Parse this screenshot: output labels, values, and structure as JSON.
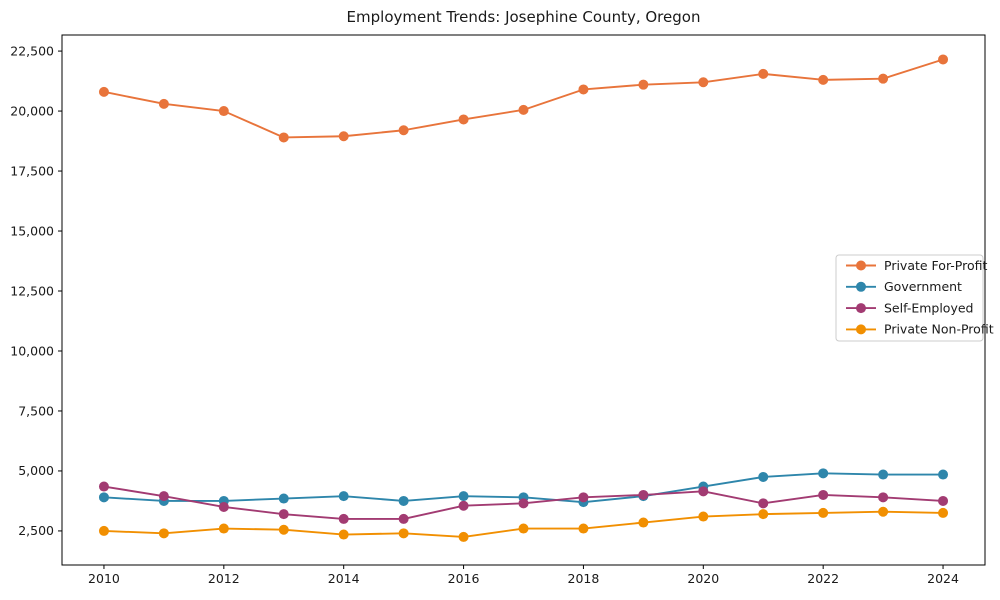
{
  "figure": {
    "background": "#ffffff",
    "axis_color": "#000000",
    "tick_label_color": "#1a1a1a"
  },
  "chart_data": {
    "type": "line",
    "title": "Employment Trends: Josephine County, Oregon",
    "xlabel": "",
    "ylabel": "",
    "grid": false,
    "legend_position": "center right",
    "x": [
      2010,
      2011,
      2012,
      2013,
      2014,
      2015,
      2016,
      2017,
      2018,
      2019,
      2020,
      2021,
      2022,
      2023,
      2024
    ],
    "xlim": [
      2009.3,
      2024.7
    ],
    "ylim": [
      1080,
      23170
    ],
    "x_ticks": [
      2010,
      2012,
      2014,
      2016,
      2018,
      2020,
      2022,
      2024
    ],
    "x_tick_labels": [
      "2010",
      "2012",
      "2014",
      "2016",
      "2018",
      "2020",
      "2022",
      "2024"
    ],
    "y_ticks": [
      2500,
      5000,
      7500,
      10000,
      12500,
      15000,
      17500,
      20000,
      22500
    ],
    "y_tick_labels": [
      "2,500",
      "5,000",
      "7,500",
      "10,000",
      "12,500",
      "15,000",
      "17,500",
      "20,000",
      "22,500"
    ],
    "series": [
      {
        "name": "Private For-Profit",
        "color": "#E8743B",
        "values": [
          20800,
          20300,
          20000,
          18900,
          18950,
          19200,
          19650,
          20050,
          20900,
          21100,
          21200,
          21550,
          21300,
          21350,
          22150
        ]
      },
      {
        "name": "Government",
        "color": "#2E86AB",
        "values": [
          3900,
          3750,
          3750,
          3850,
          3950,
          3750,
          3950,
          3900,
          3700,
          3950,
          4350,
          4750,
          4900,
          4850,
          4850
        ]
      },
      {
        "name": "Self-Employed",
        "color": "#A23B72",
        "values": [
          4350,
          3950,
          3500,
          3200,
          3000,
          3000,
          3550,
          3650,
          3900,
          4000,
          4150,
          3650,
          4000,
          3900,
          3750
        ]
      },
      {
        "name": "Private Non-Profit",
        "color": "#F18F01",
        "values": [
          2500,
          2400,
          2600,
          2550,
          2350,
          2400,
          2250,
          2600,
          2600,
          2850,
          3100,
          3200,
          3250,
          3300,
          3250
        ]
      }
    ]
  }
}
